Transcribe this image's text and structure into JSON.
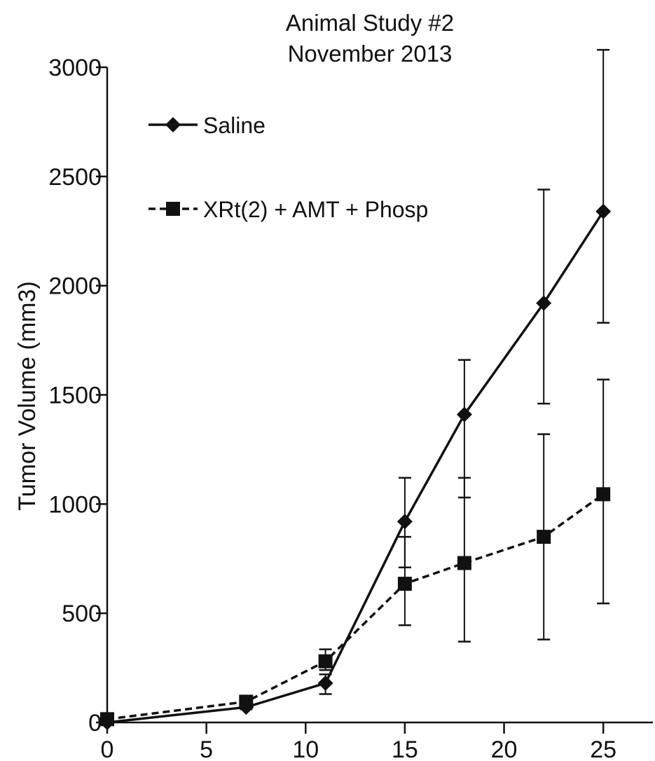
{
  "chart_data": {
    "type": "line",
    "title": "Animal Study #2",
    "subtitle": "November 2013",
    "xlabel": "",
    "ylabel": "Tumor Volume (mm3)",
    "xlim": [
      0,
      27.5
    ],
    "ylim": [
      0,
      3000
    ],
    "xticks": [
      0,
      5,
      10,
      15,
      20,
      25
    ],
    "yticks": [
      0,
      500,
      1000,
      1500,
      2000,
      2500,
      3000
    ],
    "grid": false,
    "legend_position": "top-left",
    "series": [
      {
        "name": "Saline",
        "marker": "diamond",
        "line_style": "solid",
        "x": [
          0,
          7,
          11,
          15,
          18,
          22,
          25
        ],
        "y": [
          0,
          70,
          180,
          920,
          1410,
          1920,
          2340
        ],
        "err_low": [
          0,
          60,
          130,
          710,
          1030,
          1460,
          1830
        ],
        "err_high": [
          0,
          80,
          220,
          1120,
          1660,
          2440,
          3080
        ]
      },
      {
        "name": "XRt(2) + AMT + Phosp",
        "marker": "square",
        "line_style": "dashed",
        "x": [
          0,
          7,
          11,
          15,
          18,
          22,
          25
        ],
        "y": [
          15,
          95,
          280,
          635,
          730,
          850,
          1045
        ],
        "err_low": [
          15,
          95,
          240,
          445,
          370,
          380,
          545
        ],
        "err_high": [
          15,
          95,
          335,
          850,
          1120,
          1320,
          1570
        ]
      }
    ],
    "colors": {
      "line": "#111111",
      "background": "#ffffff"
    }
  }
}
